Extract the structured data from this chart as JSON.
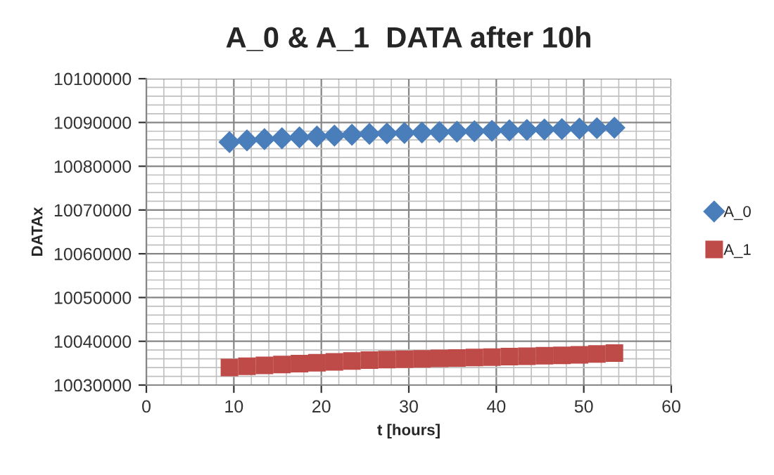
{
  "chart_data": {
    "type": "scatter",
    "title": "A_0 & A_1  DATA after 10h",
    "xlabel": "t [hours]",
    "ylabel": "DATAx",
    "x": [
      9.5,
      11.5,
      13.5,
      15.5,
      17.5,
      19.5,
      21.5,
      23.5,
      25.5,
      27.5,
      29.5,
      31.5,
      33.5,
      35.5,
      37.5,
      39.5,
      41.5,
      43.5,
      45.5,
      47.5,
      49.5,
      51.5,
      53.5
    ],
    "series": [
      {
        "name": "A_0",
        "color": "#4a7ebb",
        "marker": "diamond",
        "values": [
          10085500,
          10085900,
          10086200,
          10086400,
          10086600,
          10086800,
          10087000,
          10087200,
          10087400,
          10087500,
          10087600,
          10087700,
          10087800,
          10087900,
          10088000,
          10088100,
          10088200,
          10088300,
          10088400,
          10088500,
          10088600,
          10088700,
          10088800
        ]
      },
      {
        "name": "A_1",
        "color": "#be4b48",
        "marker": "square",
        "values": [
          10034000,
          10034300,
          10034500,
          10034700,
          10034900,
          10035100,
          10035300,
          10035500,
          10035700,
          10035800,
          10035900,
          10036000,
          10036100,
          10036200,
          10036300,
          10036400,
          10036500,
          10036600,
          10036700,
          10036800,
          10036900,
          10037100,
          10037300
        ]
      }
    ],
    "xlim": [
      0,
      60
    ],
    "xticks": [
      0,
      10,
      20,
      30,
      40,
      50,
      60
    ],
    "ylim": [
      10030000,
      10100000
    ],
    "yticks": [
      10030000,
      10040000,
      10050000,
      10060000,
      10070000,
      10080000,
      10090000,
      10100000
    ],
    "grid": true,
    "legend": "right"
  }
}
